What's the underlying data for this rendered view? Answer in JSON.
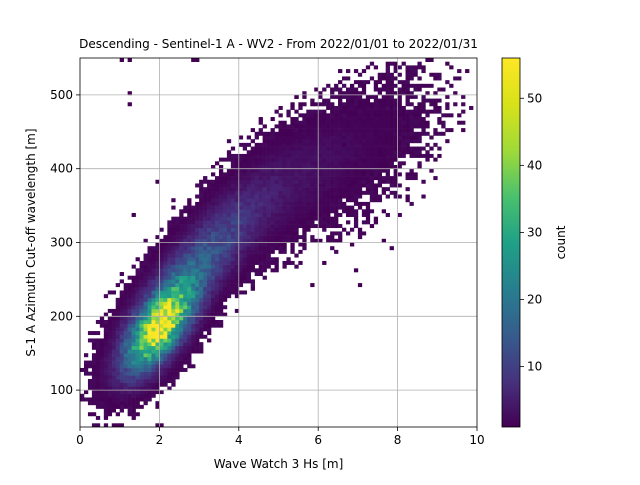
{
  "chart_data": {
    "type": "heatmap",
    "title": "Descending - Sentinel-1 A - WV2 - From 2022/01/01 to 2022/01/31",
    "xlabel": "Wave Watch 3 Hs [m]",
    "ylabel": "S-1 A Azimuth Cut-off wavelength [m]",
    "xlim": [
      0,
      10
    ],
    "ylim": [
      50,
      550
    ],
    "xticks": [
      0,
      2,
      4,
      6,
      8,
      10
    ],
    "xtick_labels": [
      "0",
      "2",
      "4",
      "6",
      "8",
      "10"
    ],
    "yticks": [
      100,
      200,
      300,
      400,
      500
    ],
    "ytick_labels": [
      "100",
      "200",
      "300",
      "400",
      "500"
    ],
    "grid": true,
    "bin_size": {
      "x": 0.1,
      "y": 5
    },
    "density_model": {
      "components": [
        {
          "x": 2.0,
          "y": 185,
          "sx": 0.55,
          "sy": 38,
          "rho": 0.65,
          "peak": 55
        },
        {
          "x": 2.9,
          "y": 265,
          "sx": 0.95,
          "sy": 60,
          "rho": 0.82,
          "peak": 16
        },
        {
          "x": 5.0,
          "y": 370,
          "sx": 1.2,
          "sy": 60,
          "rho": 0.7,
          "peak": 3.5
        },
        {
          "x": 7.3,
          "y": 430,
          "sx": 1.1,
          "sy": 60,
          "rho": 0.5,
          "peak": 1.2
        }
      ],
      "outliers": [
        [
          1.0,
          545
        ],
        [
          1.2,
          545
        ],
        [
          2.8,
          545
        ],
        [
          2.9,
          545
        ],
        [
          1.2,
          500
        ],
        [
          1.2,
          485
        ],
        [
          8.8,
          525
        ],
        [
          8.9,
          520
        ],
        [
          8.2,
          500
        ],
        [
          8.4,
          470
        ],
        [
          7.9,
          410
        ],
        [
          6.6,
          430
        ],
        [
          5.4,
          495
        ],
        [
          1.3,
          335
        ],
        [
          1.9,
          380
        ],
        [
          0.9,
          50
        ],
        [
          1.0,
          50
        ],
        [
          1.9,
          50
        ],
        [
          2.0,
          50
        ],
        [
          0.9,
          75
        ],
        [
          1.9,
          75
        ],
        [
          0.7,
          85
        ],
        [
          7.3,
          320
        ],
        [
          7.4,
          330
        ],
        [
          7.8,
          290
        ],
        [
          6.9,
          260
        ],
        [
          6.1,
          270
        ],
        [
          5.8,
          240
        ],
        [
          7.0,
          240
        ],
        [
          7.6,
          300
        ]
      ]
    },
    "colorbar": {
      "label": "count",
      "min": 1,
      "max": 56,
      "ticks": [
        10,
        20,
        30,
        40,
        50
      ],
      "tick_labels": [
        "10",
        "20",
        "30",
        "40",
        "50"
      ],
      "colormap": "viridis"
    }
  }
}
